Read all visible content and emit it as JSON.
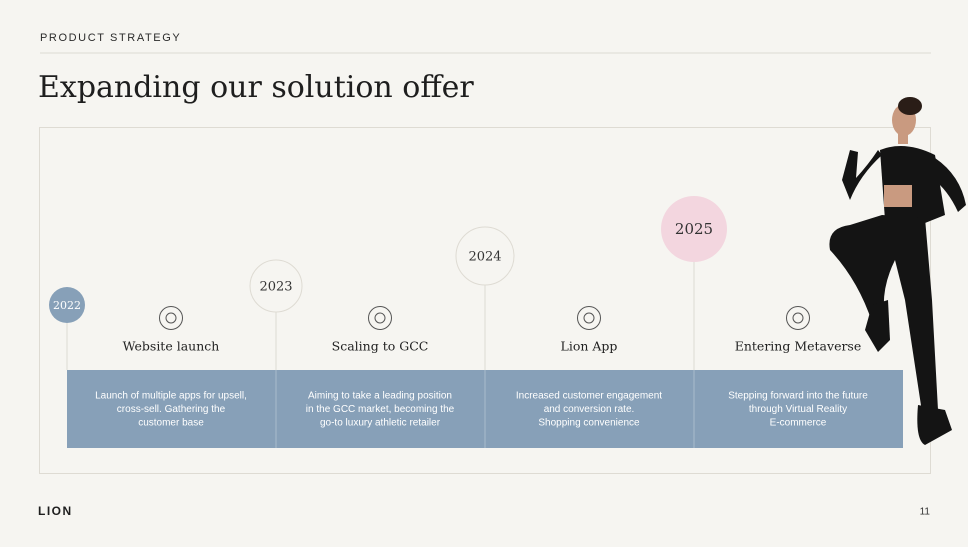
{
  "header": {
    "label": "PRODUCT STRATEGY",
    "title": "Expanding our solution offer"
  },
  "timeline": [
    {
      "year": "2022",
      "title": "Website launch",
      "description": [
        "Launch of multiple apps for upsell,",
        "cross-sell. Gathering the",
        "customer base"
      ]
    },
    {
      "year": "2023",
      "title": "Scaling to GCC",
      "description": [
        "Aiming to take a leading position",
        "in the GCC market, becoming the",
        "go-to luxury athletic retailer"
      ]
    },
    {
      "year": "2024",
      "title": "Lion App",
      "description": [
        "Increased customer engagement",
        "and conversion rate.",
        "Shopping convenience"
      ]
    },
    {
      "year": "2025",
      "title": "Entering Metaverse",
      "description": [
        "Stepping forward into the future",
        "through Virtual Reality",
        "E-commerce"
      ]
    }
  ],
  "footer": {
    "brand": "LION",
    "page": "11"
  }
}
